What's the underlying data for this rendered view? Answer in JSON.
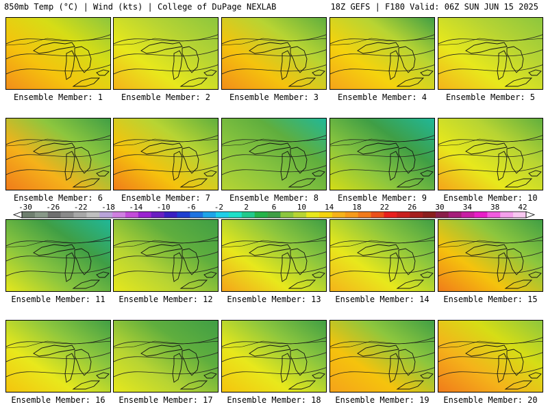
{
  "header": {
    "left": "850mb Temp (°C) | Wind (kts) | College of DuPage NEXLAB",
    "right": "18Z GEFS | F180 Valid: 06Z SUN JUN 15 2025"
  },
  "members": [
    {
      "label": "Ensemble Member: 1",
      "c": [
        "#f28c1a",
        "#f5c30d",
        "#d6dd16",
        "#8cc63e"
      ]
    },
    {
      "label": "Ensemble Member: 2",
      "c": [
        "#f5b21a",
        "#e8e81c",
        "#b7d433",
        "#8cc63e"
      ]
    },
    {
      "label": "Ensemble Member: 3",
      "c": [
        "#f28c1a",
        "#f5c30d",
        "#b7d433",
        "#5fae3e"
      ]
    },
    {
      "label": "Ensemble Member: 4",
      "c": [
        "#f5a21a",
        "#f5d30d",
        "#b7d433",
        "#3f9e45"
      ]
    },
    {
      "label": "Ensemble Member: 5",
      "c": [
        "#f5b21a",
        "#e8e81c",
        "#b7d433",
        "#8cc63e"
      ]
    },
    {
      "label": "Ensemble Member: 6",
      "c": [
        "#f07a1a",
        "#f5b21a",
        "#8cc63e",
        "#3f9e45"
      ]
    },
    {
      "label": "Ensemble Member: 7",
      "c": [
        "#f07a1a",
        "#f5c30d",
        "#b7d433",
        "#5fae3e"
      ]
    },
    {
      "label": "Ensemble Member: 8",
      "c": [
        "#b7d433",
        "#8cc63e",
        "#5fae3e",
        "#1fb89a"
      ]
    },
    {
      "label": "Ensemble Member: 9",
      "c": [
        "#d6dd16",
        "#8cc63e",
        "#3f9e45",
        "#1fb89a"
      ]
    },
    {
      "label": "Ensemble Member: 10",
      "c": [
        "#f5a21a",
        "#e8e81c",
        "#b7d433",
        "#5fae3e"
      ]
    },
    {
      "label": "Ensemble Member: 11",
      "c": [
        "#e8e81c",
        "#8cc63e",
        "#3f9e45",
        "#1fb89a"
      ]
    },
    {
      "label": "Ensemble Member: 12",
      "c": [
        "#e8e81c",
        "#b7d433",
        "#5fae3e",
        "#3f9e45"
      ]
    },
    {
      "label": "Ensemble Member: 13",
      "c": [
        "#f5a21a",
        "#e8e81c",
        "#8cc63e",
        "#3f9e45"
      ]
    },
    {
      "label": "Ensemble Member: 14",
      "c": [
        "#f5b21a",
        "#e8e81c",
        "#8cc63e",
        "#3f9e45"
      ]
    },
    {
      "label": "Ensemble Member: 15",
      "c": [
        "#f07a1a",
        "#f5c30d",
        "#8cc63e",
        "#3f9e45"
      ]
    },
    {
      "label": "Ensemble Member: 16",
      "c": [
        "#f5c30d",
        "#e8e81c",
        "#8cc63e",
        "#3f9e45"
      ]
    },
    {
      "label": "Ensemble Member: 17",
      "c": [
        "#e8e81c",
        "#b7d433",
        "#5fae3e",
        "#3f9e45"
      ]
    },
    {
      "label": "Ensemble Member: 18",
      "c": [
        "#f5c30d",
        "#e8e81c",
        "#8cc63e",
        "#3f9e45"
      ]
    },
    {
      "label": "Ensemble Member: 19",
      "c": [
        "#f5a21a",
        "#f5c30d",
        "#8cc63e",
        "#3f9e45"
      ]
    },
    {
      "label": "Ensemble Member: 20",
      "c": [
        "#f07a1a",
        "#f5b21a",
        "#d6dd16",
        "#8cc63e"
      ]
    }
  ],
  "colorbar": {
    "ticks": [
      "-30",
      "-26",
      "-22",
      "-18",
      "-14",
      "-10",
      "-6",
      "-2",
      "2",
      "6",
      "10",
      "14",
      "18",
      "22",
      "26",
      "30",
      "34",
      "38",
      "42"
    ],
    "colors": [
      "#6f7f6f",
      "#889888",
      "#6f6f6f",
      "#8a8a8a",
      "#a7a7a7",
      "#bfbfbf",
      "#b9a3d9",
      "#cf7fe0",
      "#c34bd9",
      "#9a22d0",
      "#6a1ec2",
      "#3a1ec2",
      "#1e3fd0",
      "#1e73e0",
      "#1ea4e8",
      "#1ecfe8",
      "#1ee0c8",
      "#22c98c",
      "#25b34a",
      "#3f9e45",
      "#8cc63e",
      "#b7d433",
      "#e8e81c",
      "#f5d30d",
      "#f5b21a",
      "#f59a1a",
      "#f07a1a",
      "#ea4f1a",
      "#e81e1e",
      "#c81e1e",
      "#a51e1e",
      "#8a1e1e",
      "#8a1e4a",
      "#a51e7a",
      "#c81ea4",
      "#e81ec8",
      "#f25ae0",
      "#f5a0ec",
      "#f8c8f0"
    ]
  }
}
